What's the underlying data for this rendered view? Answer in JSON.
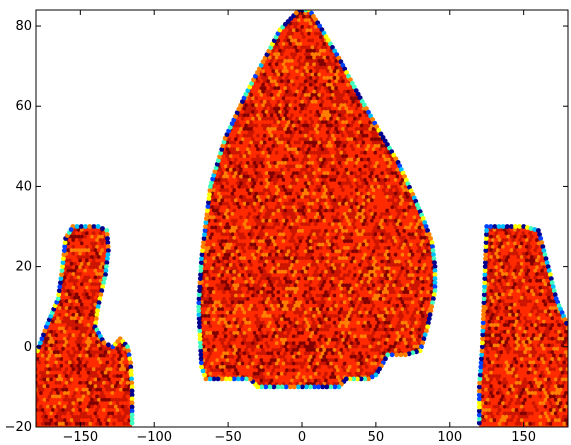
{
  "chart_data": {
    "type": "scatter",
    "title": "",
    "xlabel": "",
    "ylabel": "",
    "xlim": [
      -180,
      180
    ],
    "ylim": [
      -20,
      84
    ],
    "grid": false,
    "legend": "none",
    "x_ticks": [
      -150,
      -100,
      -50,
      0,
      50,
      100,
      150
    ],
    "x_tick_labels": [
      "−150",
      "−100",
      "−50",
      "0",
      "50",
      "100",
      "150"
    ],
    "y_ticks": [
      -20,
      0,
      20,
      40,
      60,
      80
    ],
    "y_tick_labels": [
      "−20",
      "0",
      "20",
      "40",
      "60",
      "80"
    ],
    "colormap": [
      "#00008f",
      "#0040ff",
      "#00bfff",
      "#40ffbf",
      "#ffff00",
      "#ff8000",
      "#ff2a00",
      "#cc1500",
      "#800000"
    ],
    "fill_color": "#ff3a00",
    "regions": [
      {
        "name": "left",
        "outline": [
          [
            -155,
            30
          ],
          [
            -138,
            30
          ],
          [
            -132,
            29
          ],
          [
            -131,
            24
          ],
          [
            -133,
            18
          ],
          [
            -138,
            10
          ],
          [
            -140,
            5
          ],
          [
            -134,
            1
          ],
          [
            -128,
            0
          ],
          [
            -123,
            2
          ],
          [
            -118,
            0
          ],
          [
            -116,
            -4
          ],
          [
            -115,
            -10
          ],
          [
            -115,
            -20
          ],
          [
            -180,
            -20
          ],
          [
            -180,
            -2
          ],
          [
            -173,
            5
          ],
          [
            -165,
            12
          ],
          [
            -162,
            20
          ],
          [
            -160,
            27
          ]
        ]
      },
      {
        "name": "center",
        "outline": [
          [
            -2,
            84
          ],
          [
            5,
            84
          ],
          [
            12,
            80
          ],
          [
            25,
            72
          ],
          [
            38,
            63
          ],
          [
            52,
            54
          ],
          [
            65,
            46
          ],
          [
            75,
            38
          ],
          [
            82,
            32
          ],
          [
            88,
            26
          ],
          [
            90,
            20
          ],
          [
            90,
            14
          ],
          [
            85,
            5
          ],
          [
            80,
            -1
          ],
          [
            70,
            -2
          ],
          [
            58,
            -2
          ],
          [
            55,
            -4
          ],
          [
            50,
            -7
          ],
          [
            45,
            -8
          ],
          [
            30,
            -8
          ],
          [
            25,
            -10
          ],
          [
            -30,
            -10
          ],
          [
            -35,
            -8
          ],
          [
            -65,
            -8
          ],
          [
            -68,
            -5
          ],
          [
            -70,
            10
          ],
          [
            -68,
            22
          ],
          [
            -62,
            40
          ],
          [
            -52,
            52
          ],
          [
            -38,
            63
          ],
          [
            -25,
            72
          ],
          [
            -15,
            79
          ]
        ]
      },
      {
        "name": "right",
        "outline": [
          [
            125,
            30
          ],
          [
            150,
            30
          ],
          [
            160,
            29
          ],
          [
            163,
            25
          ],
          [
            168,
            18
          ],
          [
            172,
            12
          ],
          [
            180,
            5
          ],
          [
            180,
            -20
          ],
          [
            120,
            -20
          ],
          [
            120,
            -10
          ],
          [
            122,
            0
          ],
          [
            123,
            10
          ],
          [
            124,
            20
          ]
        ]
      }
    ]
  }
}
